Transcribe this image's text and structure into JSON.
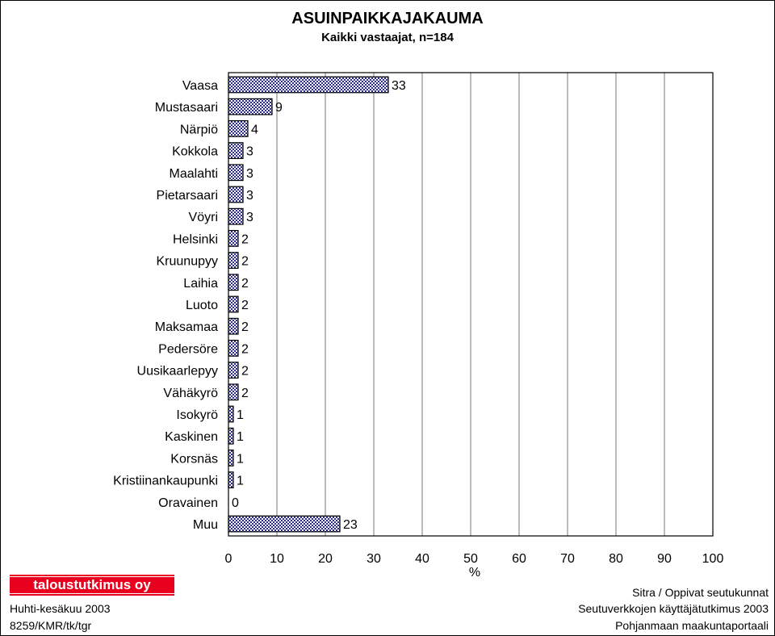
{
  "chart_data": {
    "type": "bar",
    "orientation": "horizontal",
    "title": "ASUINPAIKKAJAKAUMA",
    "subtitle": "Kaikki vastaajat, n=184",
    "xlabel": "%",
    "ylabel": "",
    "xlim": [
      0,
      100
    ],
    "xticks": [
      0,
      10,
      20,
      30,
      40,
      50,
      60,
      70,
      80,
      90,
      100
    ],
    "grid": true,
    "categories": [
      "Vaasa",
      "Mustasaari",
      "Närpiö",
      "Kokkola",
      "Maalahti",
      "Pietarsaari",
      "Vöyri",
      "Helsinki",
      "Kruunupyy",
      "Laihia",
      "Luoto",
      "Maksamaa",
      "Pedersöre",
      "Uusikaarlepyy",
      "Vähäkyrö",
      "Isokyrö",
      "Kaskinen",
      "Korsnäs",
      "Kristiinankaupunki",
      "Oravainen",
      "Muu"
    ],
    "values": [
      33,
      9,
      4,
      3,
      3,
      3,
      3,
      2,
      2,
      2,
      2,
      2,
      2,
      2,
      2,
      1,
      1,
      1,
      1,
      0,
      23
    ],
    "bar_color": "#8f8fd6"
  },
  "footer": {
    "logo": "taloustutkimus oy",
    "date": "Huhti-kesäkuu 2003",
    "code": "8259/KMR/tk/tgr",
    "source1": "Sitra / Oppivat seutukunnat",
    "source2": "Seutuverkkojen käyttäjätutkimus 2003",
    "source3": "Pohjanmaan maakuntaportaali"
  }
}
